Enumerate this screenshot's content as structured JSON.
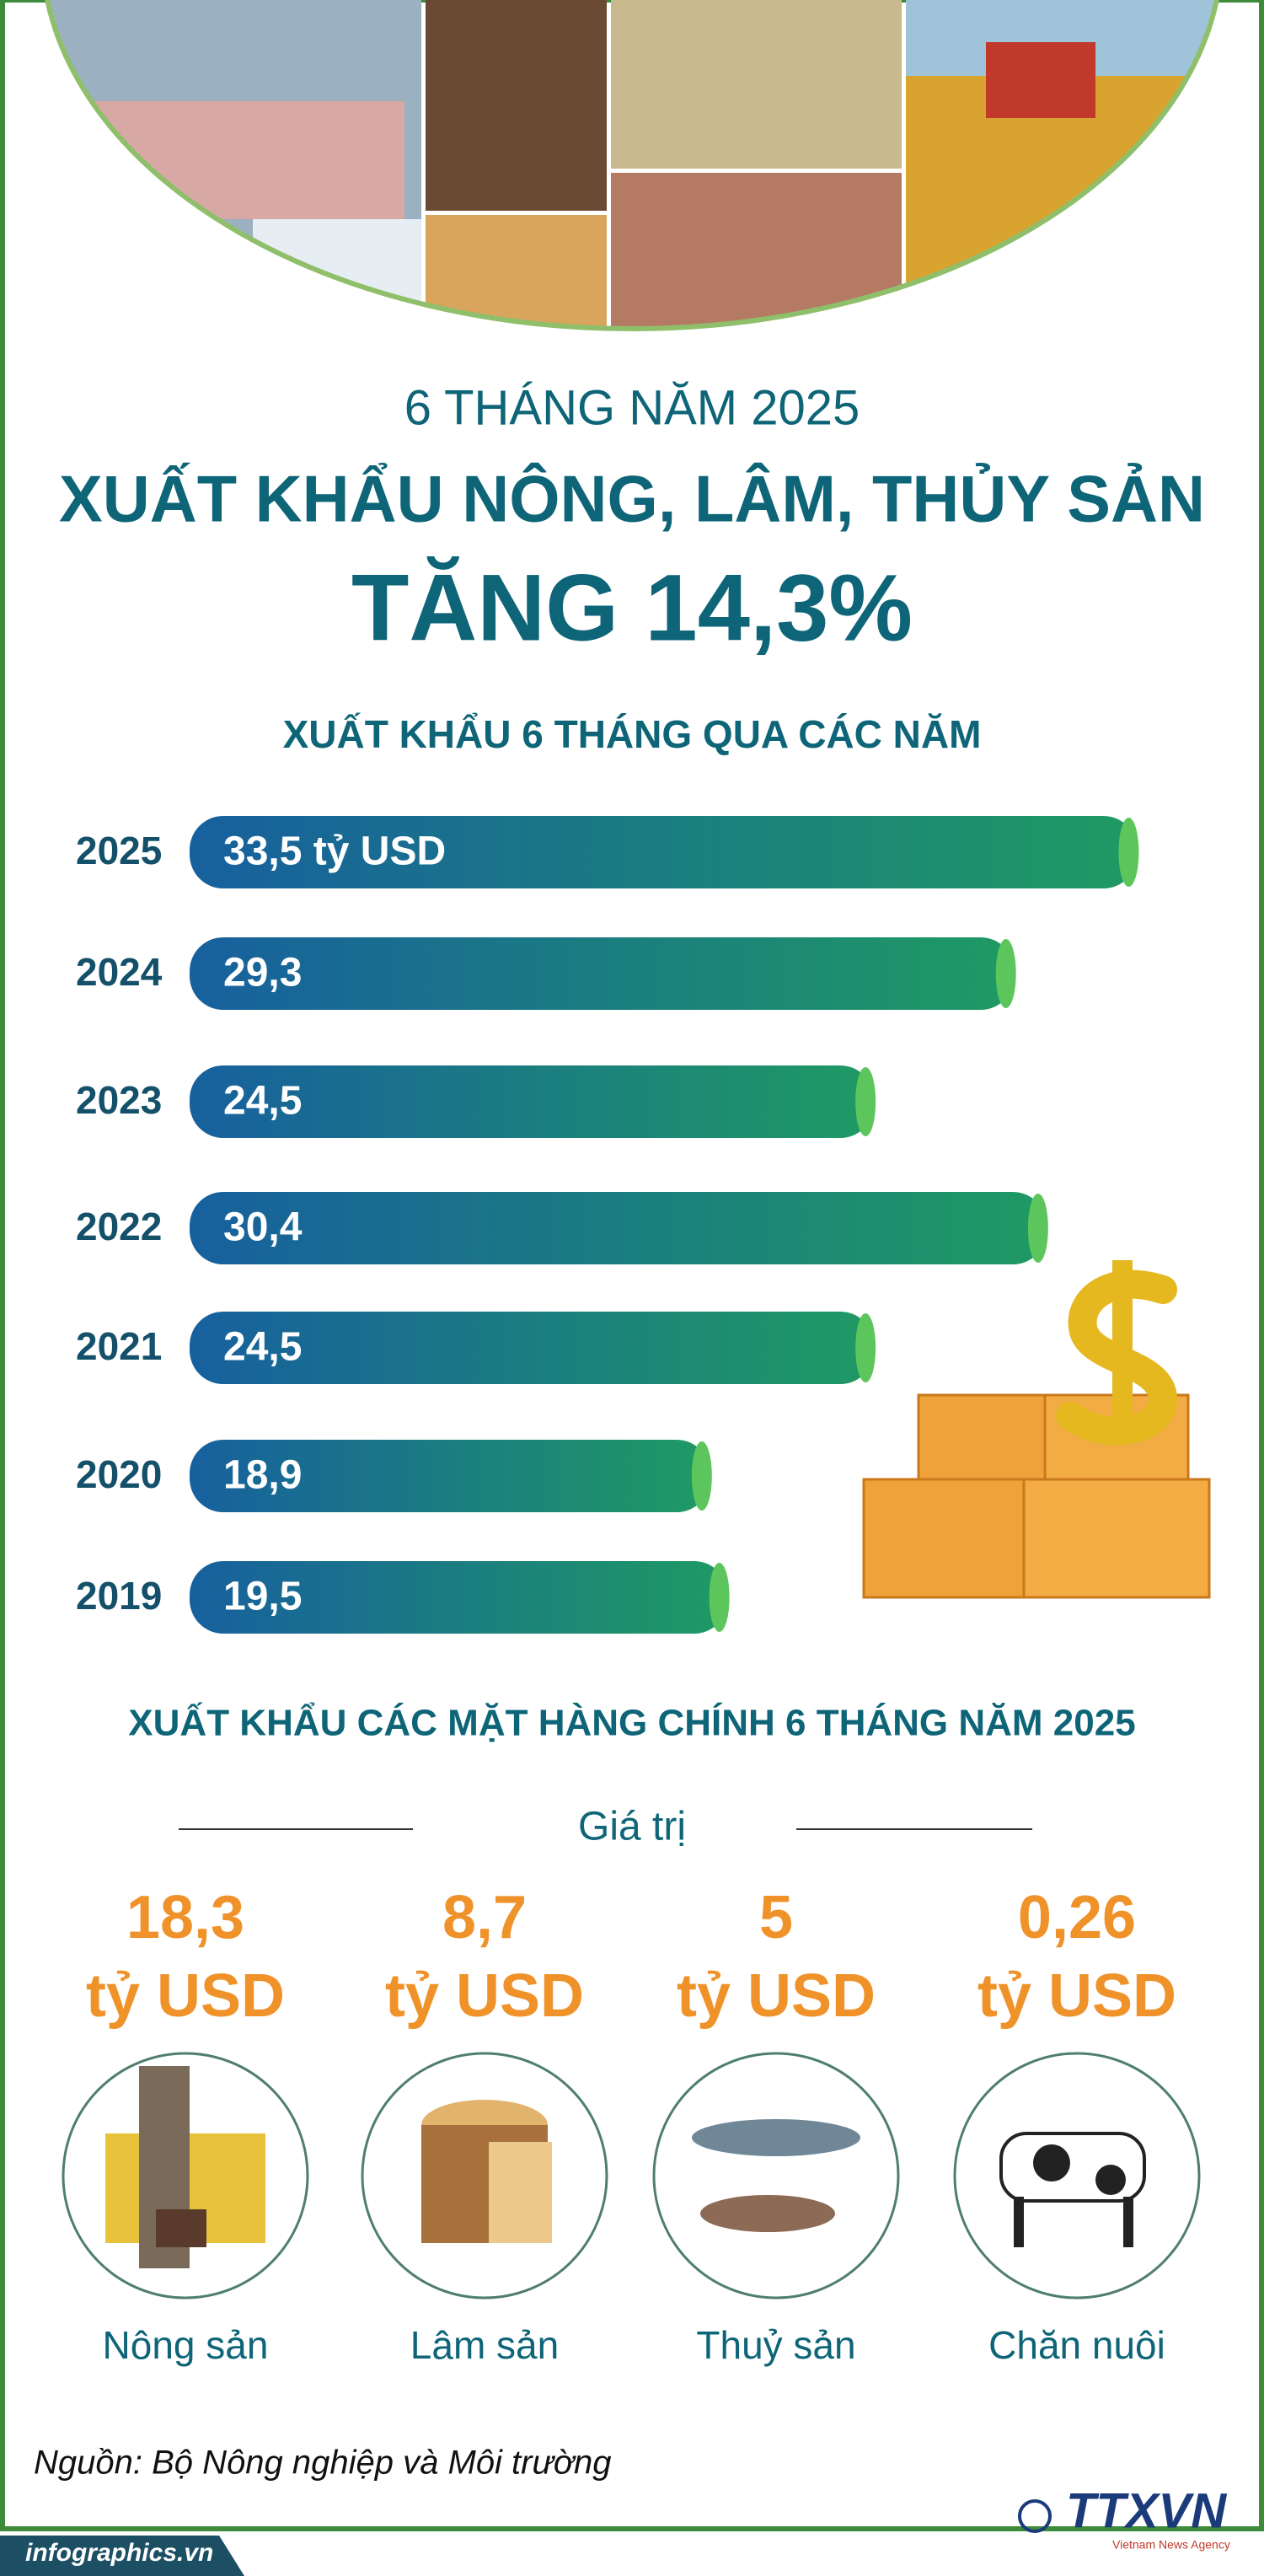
{
  "header": {
    "kicker": "6 THÁNG NĂM 2025",
    "title": "XUẤT KHẨU NÔNG, LÂM, THỦY SẢN",
    "highlight": "TĂNG 14,3%"
  },
  "chart_data": {
    "type": "bar",
    "orientation": "horizontal",
    "title": "XUẤT KHẨU 6 THÁNG QUA CÁC NĂM",
    "categories": [
      "2025",
      "2024",
      "2023",
      "2022",
      "2021",
      "2020",
      "2019"
    ],
    "values": [
      33.5,
      29.3,
      24.5,
      30.4,
      24.5,
      18.9,
      19.5
    ],
    "value_labels": [
      "33,5 tỷ USD",
      "29,3",
      "24,5",
      "30,4",
      "24,5",
      "18,9",
      "19,5"
    ],
    "color": [
      "#17609e",
      "#1f9a63"
    ]
  },
  "products": {
    "title": "XUẤT KHẨU CÁC MẶT HÀNG CHÍNH 6 THÁNG NĂM 2025",
    "subtitle": "Giá trị",
    "items": [
      {
        "value": "18,3",
        "unit": "tỷ USD",
        "label": "Nông sản"
      },
      {
        "value": "8,7",
        "unit": "tỷ USD",
        "label": "Lâm sản"
      },
      {
        "value": "5",
        "unit": "tỷ USD",
        "label": "Thuỷ sản"
      },
      {
        "value": "0,26",
        "unit": "tỷ USD",
        "label": "Chăn nuôi"
      }
    ]
  },
  "source": "Nguồn: Bộ Nông nghiệp và Môi trường",
  "site": "infographics.vn",
  "logo": "TTXVN",
  "logo_sub": "Vietnam News Agency"
}
